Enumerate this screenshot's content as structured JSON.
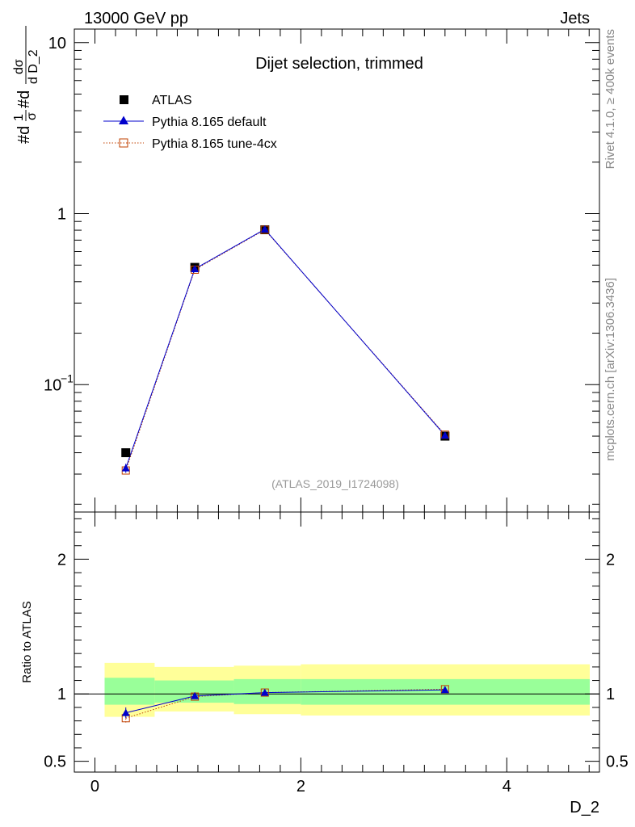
{
  "header": {
    "energy": "13000 GeV pp",
    "process": "Jets"
  },
  "side_labels": {
    "rivet": "Rivet 4.1.0, ≥ 400k events",
    "mcplots": "mcplots.cern.ch [arXiv:1306.3436]"
  },
  "colors": {
    "atlas": "#000000",
    "pythia_default": "#0000cc",
    "pythia_tune": "#c04000",
    "band_inner": "#99ff99",
    "band_outer": "#ffff99"
  },
  "chart_data": [
    {
      "type": "line",
      "panel": "main",
      "title": "Dijet selection, trimmed",
      "analysis_tag": "(ATLAS_2019_I1724098)",
      "ylabel_parts": {
        "lhs": "#d",
        "one": "1",
        "sigma": "σ",
        "mid": "#d",
        "dsigma": "dσ",
        "dvar": "d D_2"
      },
      "yscale": "log",
      "ylim": [
        0.018,
        12
      ],
      "xlim": [
        -0.2,
        4.9
      ],
      "ytick_labels": [
        {
          "value": 10,
          "label": "10"
        },
        {
          "value": 1,
          "label": "1"
        },
        {
          "value": 0.1,
          "label_base": "10",
          "label_exp": "−1"
        }
      ],
      "legend": {
        "position": "top-left",
        "entries": [
          "ATLAS",
          "Pythia 8.165 default",
          "Pythia 8.165 tune-4cx"
        ]
      },
      "series": [
        {
          "name": "ATLAS",
          "marker": "filled-square",
          "x": [
            0.3,
            0.97,
            1.65,
            3.4
          ],
          "y": [
            0.04,
            0.485,
            0.805,
            0.05
          ]
        },
        {
          "name": "Pythia 8.165 default",
          "marker": "filled-triangle",
          "line": "solid",
          "x": [
            0.3,
            0.97,
            1.65,
            3.4
          ],
          "y": [
            0.0325,
            0.475,
            0.81,
            0.0505
          ],
          "yerr": [
            0.002,
            0.006,
            0.008,
            0.001
          ]
        },
        {
          "name": "Pythia 8.165 tune-4cx",
          "marker": "open-square",
          "line": "dotted",
          "x": [
            0.3,
            0.97,
            1.65,
            3.4
          ],
          "y": [
            0.0315,
            0.47,
            0.805,
            0.051
          ]
        }
      ]
    },
    {
      "type": "line",
      "panel": "ratio",
      "ylabel": "Ratio to ATLAS",
      "xlabel": "D_2",
      "ylim": [
        0.42,
        2.35
      ],
      "xlim": [
        -0.2,
        4.9
      ],
      "ytick_labels": [
        {
          "value": 2,
          "label": "2"
        },
        {
          "value": 1,
          "label": "1"
        },
        {
          "value": 0.5,
          "label": "0.5"
        }
      ],
      "xtick_labels": [
        {
          "value": 0,
          "label": "0"
        },
        {
          "value": 2,
          "label": "2"
        },
        {
          "value": 4,
          "label": "4"
        }
      ],
      "bins": [
        0.0,
        0.58,
        1.35,
        2.0,
        4.9
      ],
      "band_outer": {
        "low": [
          0.83,
          0.87,
          0.85,
          0.84
        ],
        "high": [
          1.23,
          1.2,
          1.21,
          1.22
        ]
      },
      "band_inner": {
        "low": [
          0.92,
          0.935,
          0.925,
          0.92
        ],
        "high": [
          1.12,
          1.1,
          1.11,
          1.11
        ]
      },
      "series": [
        {
          "name": "Pythia 8.165 default",
          "marker": "filled-triangle",
          "line": "solid",
          "x": [
            0.3,
            0.97,
            1.65,
            3.4
          ],
          "y": [
            0.86,
            0.985,
            1.01,
            1.03
          ],
          "yerr": [
            0.04,
            0.01,
            0.01,
            0.01
          ]
        },
        {
          "name": "Pythia 8.165 tune-4cx",
          "marker": "open-square",
          "line": "dotted",
          "x": [
            0.3,
            0.97,
            1.65,
            3.4
          ],
          "y": [
            0.82,
            0.98,
            1.01,
            1.035
          ],
          "yerr": [
            0.04,
            0.01,
            0.01,
            0.01
          ]
        }
      ]
    }
  ]
}
